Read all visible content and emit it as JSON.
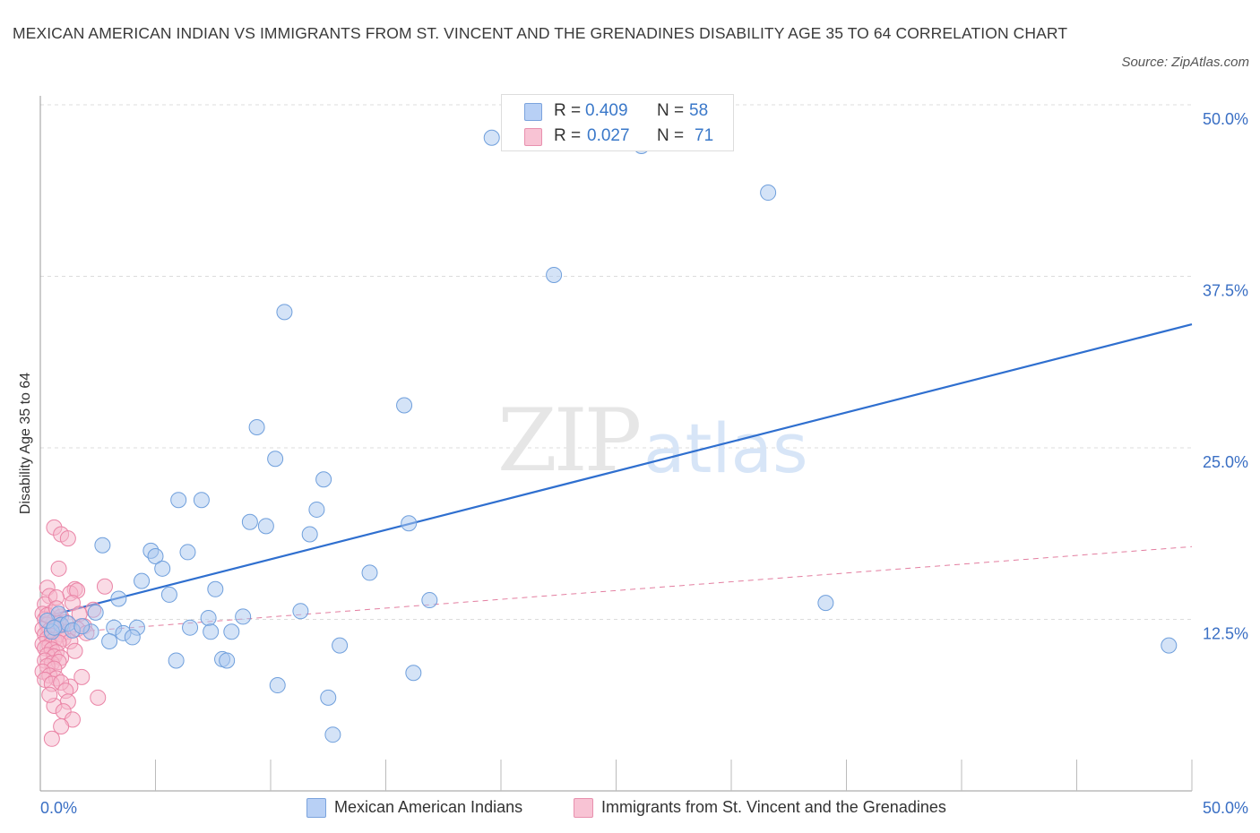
{
  "title": "MEXICAN AMERICAN INDIAN VS IMMIGRANTS FROM ST. VINCENT AND THE GRENADINES DISABILITY AGE 35 TO 64 CORRELATION CHART",
  "source": "Source: ZipAtlas.com",
  "watermark": {
    "zip": "ZIP",
    "atlas": "atlas"
  },
  "legend": {
    "r_label": "R =",
    "n_label": "N =",
    "rows": [
      {
        "r": "0.409",
        "n": "58",
        "color": "#b8d0f5",
        "border": "#7ba3dd"
      },
      {
        "r": "0.027",
        "n": "71",
        "color": "#f8c3d4",
        "border": "#e890ae"
      }
    ]
  },
  "colors": {
    "blue_fill": "#aac7ef",
    "blue_stroke": "#6f9fdc",
    "blue_line": "#2f6fcf",
    "pink_fill": "#f6b7cb",
    "pink_stroke": "#ea84a6",
    "pink_line": "#e37ea0",
    "tick_text": "#3a6fc4"
  },
  "chart_data": {
    "type": "scatter",
    "title": "MEXICAN AMERICAN INDIAN VS IMMIGRANTS FROM ST. VINCENT AND THE GRENADINES DISABILITY AGE 35 TO 64 CORRELATION CHART",
    "xlabel": "",
    "ylabel": "Disability Age 35 to 64",
    "xlim": [
      0,
      50
    ],
    "ylim": [
      0,
      50
    ],
    "x_tick_labels": [
      {
        "value": 0,
        "label": "0.0%"
      },
      {
        "value": 50,
        "label": "50.0%"
      }
    ],
    "y_tick_labels": [
      {
        "value": 12.5,
        "label": "12.5%"
      },
      {
        "value": 25,
        "label": "25.0%"
      },
      {
        "value": 37.5,
        "label": "37.5%"
      },
      {
        "value": 50,
        "label": "50.0%"
      }
    ],
    "legend_position": "top-center",
    "grid": true,
    "series": [
      {
        "name": "Mexican American Indians",
        "color": "#aac7ef",
        "points": [
          [
            19.6,
            47.6
          ],
          [
            26.1,
            47.0
          ],
          [
            31.6,
            43.6
          ],
          [
            22.3,
            37.6
          ],
          [
            10.6,
            34.9
          ],
          [
            15.8,
            28.1
          ],
          [
            9.4,
            26.5
          ],
          [
            10.2,
            24.2
          ],
          [
            12.3,
            22.7
          ],
          [
            6.0,
            21.2
          ],
          [
            7.0,
            21.2
          ],
          [
            12.0,
            20.5
          ],
          [
            9.1,
            19.6
          ],
          [
            9.8,
            19.3
          ],
          [
            16.0,
            19.5
          ],
          [
            11.7,
            18.7
          ],
          [
            2.7,
            17.9
          ],
          [
            4.8,
            17.5
          ],
          [
            5.0,
            17.1
          ],
          [
            6.4,
            17.4
          ],
          [
            5.3,
            16.2
          ],
          [
            14.3,
            15.9
          ],
          [
            4.4,
            15.3
          ],
          [
            7.6,
            14.7
          ],
          [
            5.6,
            14.3
          ],
          [
            3.4,
            14.0
          ],
          [
            16.9,
            13.9
          ],
          [
            34.1,
            13.7
          ],
          [
            11.3,
            13.1
          ],
          [
            0.8,
            12.9
          ],
          [
            2.4,
            13.0
          ],
          [
            7.3,
            12.6
          ],
          [
            8.8,
            12.7
          ],
          [
            0.9,
            12.1
          ],
          [
            1.2,
            12.2
          ],
          [
            3.2,
            11.9
          ],
          [
            4.2,
            11.9
          ],
          [
            6.5,
            11.9
          ],
          [
            7.4,
            11.6
          ],
          [
            8.3,
            11.6
          ],
          [
            0.5,
            11.6
          ],
          [
            1.4,
            11.7
          ],
          [
            2.2,
            11.6
          ],
          [
            3.6,
            11.5
          ],
          [
            4.0,
            11.2
          ],
          [
            3.0,
            10.9
          ],
          [
            13.0,
            10.6
          ],
          [
            49.0,
            10.6
          ],
          [
            5.9,
            9.5
          ],
          [
            7.9,
            9.6
          ],
          [
            8.1,
            9.5
          ],
          [
            16.2,
            8.6
          ],
          [
            10.3,
            7.7
          ],
          [
            12.5,
            6.8
          ],
          [
            12.7,
            4.1
          ],
          [
            0.3,
            12.4
          ],
          [
            1.8,
            12.0
          ],
          [
            0.6,
            11.9
          ]
        ]
      },
      {
        "name": "Immigrants from St. Vincent and the Grenadines",
        "color": "#f6b7cb",
        "points": [
          [
            0.6,
            19.2
          ],
          [
            0.9,
            18.7
          ],
          [
            1.2,
            18.4
          ],
          [
            0.8,
            16.2
          ],
          [
            0.3,
            14.8
          ],
          [
            1.5,
            14.7
          ],
          [
            2.8,
            14.9
          ],
          [
            0.4,
            14.2
          ],
          [
            1.3,
            14.4
          ],
          [
            1.6,
            14.6
          ],
          [
            0.2,
            13.6
          ],
          [
            0.7,
            14.1
          ],
          [
            1.4,
            13.7
          ],
          [
            2.3,
            13.2
          ],
          [
            0.1,
            12.9
          ],
          [
            0.5,
            13.0
          ],
          [
            0.9,
            12.7
          ],
          [
            1.7,
            12.9
          ],
          [
            0.2,
            12.5
          ],
          [
            0.6,
            12.4
          ],
          [
            0.3,
            12.1
          ],
          [
            0.8,
            12.2
          ],
          [
            1.1,
            12.3
          ],
          [
            1.9,
            12.0
          ],
          [
            0.1,
            11.8
          ],
          [
            0.4,
            11.7
          ],
          [
            0.7,
            11.9
          ],
          [
            1.2,
            11.6
          ],
          [
            0.2,
            11.4
          ],
          [
            0.5,
            11.3
          ],
          [
            0.9,
            11.4
          ],
          [
            0.3,
            11.1
          ],
          [
            0.6,
            11.0
          ],
          [
            1.0,
            11.1
          ],
          [
            1.3,
            10.9
          ],
          [
            0.1,
            10.7
          ],
          [
            0.4,
            10.6
          ],
          [
            0.8,
            10.8
          ],
          [
            0.2,
            10.4
          ],
          [
            0.5,
            10.3
          ],
          [
            0.7,
            10.1
          ],
          [
            0.3,
            9.9
          ],
          [
            0.6,
            9.8
          ],
          [
            0.9,
            9.7
          ],
          [
            0.2,
            9.5
          ],
          [
            0.5,
            9.3
          ],
          [
            0.8,
            9.4
          ],
          [
            0.3,
            9.1
          ],
          [
            0.6,
            8.9
          ],
          [
            0.1,
            8.7
          ],
          [
            0.4,
            8.4
          ],
          [
            0.7,
            8.2
          ],
          [
            1.8,
            8.3
          ],
          [
            0.2,
            8.1
          ],
          [
            0.5,
            7.8
          ],
          [
            1.3,
            7.6
          ],
          [
            0.9,
            7.9
          ],
          [
            1.1,
            7.3
          ],
          [
            2.5,
            6.8
          ],
          [
            1.2,
            6.5
          ],
          [
            0.6,
            6.2
          ],
          [
            1.0,
            5.8
          ],
          [
            1.4,
            5.2
          ],
          [
            0.9,
            4.7
          ],
          [
            0.5,
            3.8
          ],
          [
            1.6,
            11.8
          ],
          [
            2.0,
            11.5
          ],
          [
            0.3,
            12.8
          ],
          [
            1.5,
            10.2
          ],
          [
            0.7,
            13.3
          ],
          [
            0.4,
            7.0
          ]
        ]
      }
    ],
    "trend_lines": [
      {
        "series": "Mexican American Indians",
        "x": [
          0,
          50
        ],
        "y": [
          12.6,
          34.0
        ],
        "style": "solid"
      },
      {
        "series": "Immigrants from St. Vincent and the Grenadines",
        "x": [
          0,
          50
        ],
        "y": [
          11.4,
          17.8
        ],
        "style": "dashed"
      }
    ]
  },
  "bottom_legend": [
    {
      "label": "Mexican American Indians"
    },
    {
      "label": "Immigrants from St. Vincent and the Grenadines"
    }
  ]
}
